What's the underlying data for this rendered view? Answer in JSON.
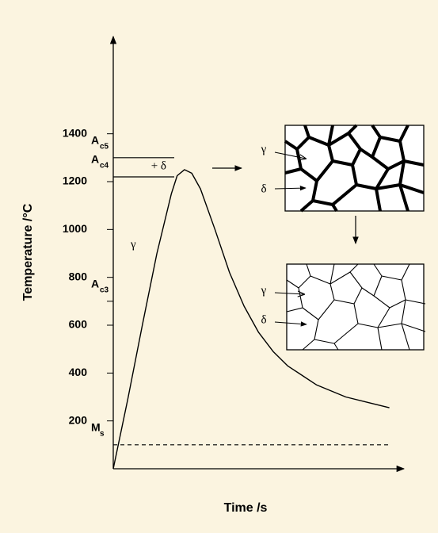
{
  "chart_data": {
    "type": "line",
    "y_label": "Temperature /°C",
    "x_label": "Time /s",
    "x": [
      0,
      5,
      10,
      15,
      20,
      22,
      24.5,
      27,
      30,
      35,
      40,
      45,
      50,
      55,
      60,
      70,
      80,
      90,
      95
    ],
    "values": [
      0,
      290,
      600,
      900,
      1150,
      1225,
      1250,
      1235,
      1170,
      1000,
      820,
      680,
      570,
      490,
      430,
      350,
      300,
      270,
      255
    ],
    "color": "#000000",
    "xlim": [
      0,
      100
    ],
    "ylim": [
      0,
      1800
    ],
    "yticks": [
      200,
      400,
      600,
      800,
      1000,
      1200,
      1400
    ],
    "levels": [
      {
        "label": "A",
        "sub": "c5",
        "value": 1300
      },
      {
        "label": "A",
        "sub": "c4",
        "value": 1220
      },
      {
        "label": "A",
        "sub": "c3",
        "value": 700
      },
      {
        "label": "M",
        "sub": "s",
        "value": 100
      }
    ],
    "text_labels": [
      {
        "text": "+ δ",
        "x": 13,
        "y": 1262
      },
      {
        "text": "γ",
        "x": 6,
        "y": 935
      }
    ]
  },
  "micrographs": [
    {
      "labels": [
        "γ",
        "δ"
      ]
    },
    {
      "labels": [
        "γ",
        "δ"
      ]
    }
  ]
}
